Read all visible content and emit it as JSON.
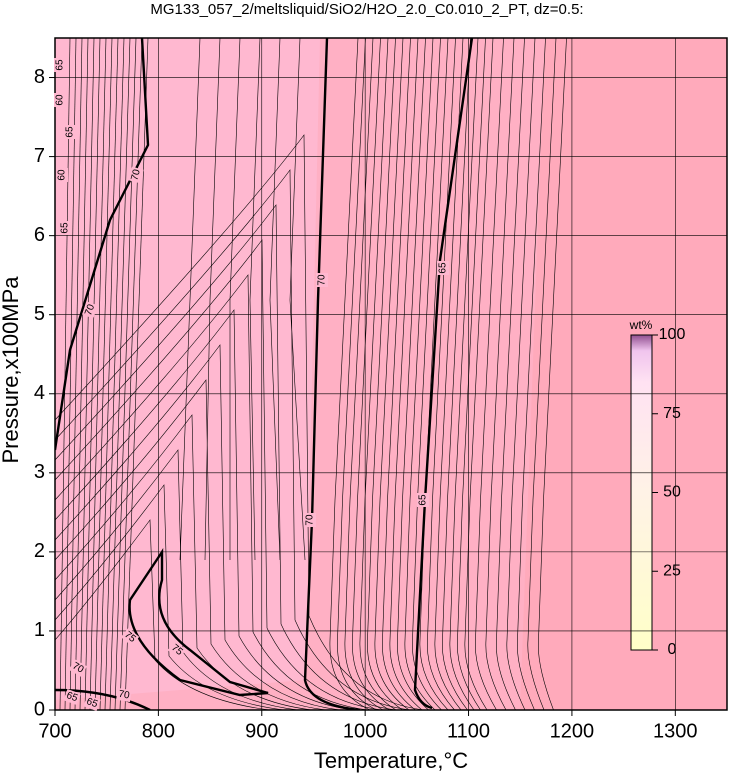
{
  "chart_data": {
    "type": "contour",
    "title": "MG133_057_2/meltsliquid/SiO2/H2O_2.0_C0.010_2_PT, dz=0.5:",
    "x_label": "Temperature,°C",
    "y_label": "Pressure,x100MPa",
    "xlim": [
      700,
      1350
    ],
    "xticks": [
      700,
      800,
      900,
      1000,
      1100,
      1200,
      1300
    ],
    "ylim": [
      0,
      8.5
    ],
    "yticks": [
      0,
      1,
      2,
      3,
      4,
      5,
      6,
      7,
      8
    ],
    "grid": true,
    "colorbar": {
      "title": "wt%",
      "lim": [
        0,
        100
      ],
      "ticks": [
        0,
        25,
        50,
        75,
        100
      ]
    },
    "contour_labels": [
      65,
      60,
      65,
      60,
      65,
      70,
      70,
      70,
      65,
      70,
      65,
      75,
      75,
      70,
      70,
      65,
      65
    ]
  }
}
